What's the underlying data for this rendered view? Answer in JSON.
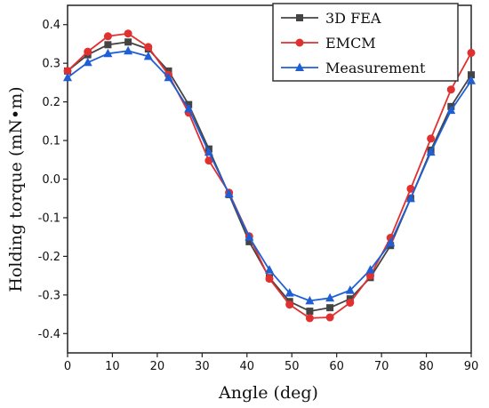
{
  "chart_data": {
    "type": "line",
    "xlabel": "Angle (deg)",
    "ylabel": "Holding torque (mN•m)",
    "xlim": [
      0,
      90
    ],
    "ylim": [
      -0.45,
      0.45
    ],
    "xticks": [
      0,
      10,
      20,
      30,
      40,
      50,
      60,
      70,
      80,
      90
    ],
    "yticks": [
      -0.4,
      -0.3,
      -0.2,
      -0.1,
      0.0,
      0.1,
      0.2,
      0.3,
      0.4
    ],
    "grid": false,
    "legend_position": "top-right",
    "series": [
      {
        "name": "3D FEA",
        "color": "#444444",
        "marker": "square",
        "x": [
          0,
          4.5,
          9,
          13.5,
          18,
          22.5,
          27,
          31.5,
          36,
          40.5,
          45,
          49.5,
          54,
          58.5,
          63,
          67.5,
          72,
          76.5,
          81,
          85.5,
          90
        ],
        "y": [
          0.28,
          0.322,
          0.348,
          0.355,
          0.337,
          0.28,
          0.193,
          0.078,
          -0.04,
          -0.162,
          -0.255,
          -0.317,
          -0.342,
          -0.333,
          -0.31,
          -0.255,
          -0.172,
          -0.05,
          0.075,
          0.188,
          0.27
        ]
      },
      {
        "name": "EMCM",
        "color": "#e03030",
        "marker": "circle",
        "x": [
          0,
          4.5,
          9,
          13.5,
          18,
          22.5,
          27,
          31.5,
          36,
          40.5,
          45,
          49.5,
          54,
          58.5,
          63,
          67.5,
          72,
          76.5,
          81,
          85.5,
          90
        ],
        "y": [
          0.28,
          0.33,
          0.37,
          0.377,
          0.342,
          0.27,
          0.172,
          0.048,
          -0.035,
          -0.148,
          -0.258,
          -0.325,
          -0.36,
          -0.358,
          -0.32,
          -0.25,
          -0.152,
          -0.025,
          0.105,
          0.232,
          0.327
        ]
      },
      {
        "name": "Measurement",
        "color": "#1f5fd6",
        "marker": "triangle",
        "x": [
          0,
          4.5,
          9,
          13.5,
          18,
          22.5,
          27,
          31.5,
          36,
          40.5,
          45,
          49.5,
          54,
          58.5,
          63,
          67.5,
          72,
          76.5,
          81,
          85.5,
          90
        ],
        "y": [
          0.263,
          0.302,
          0.325,
          0.332,
          0.318,
          0.263,
          0.182,
          0.07,
          -0.038,
          -0.15,
          -0.235,
          -0.295,
          -0.315,
          -0.308,
          -0.288,
          -0.235,
          -0.165,
          -0.05,
          0.07,
          0.178,
          0.255
        ]
      }
    ]
  }
}
